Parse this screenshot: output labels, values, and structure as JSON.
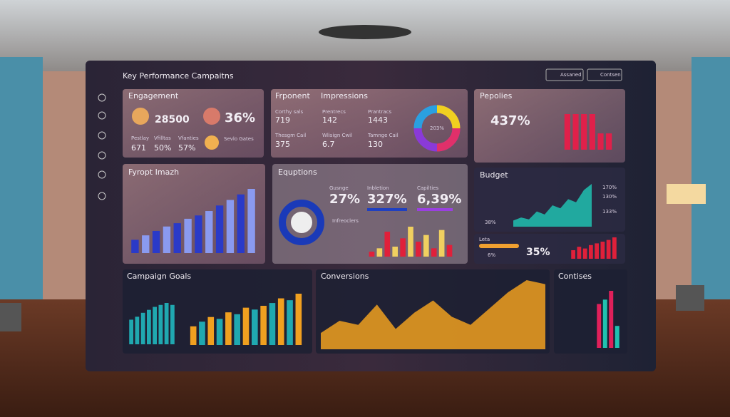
{
  "header": {
    "title": "Key Performance Campaitns",
    "actions": [
      "Assaned",
      "Contsen"
    ]
  },
  "engagement": {
    "title": "Engagement",
    "metrics": [
      "28500",
      "36%"
    ],
    "labels": [
      "Pestlay",
      "Vfilltas",
      "Vfanties"
    ],
    "values": [
      "671",
      "50%",
      "57%"
    ],
    "note": "Sevlo Gates"
  },
  "impressions": {
    "title": "Frponent",
    "subtitle": "Impressions",
    "labels": [
      "Corthy sals",
      "Prentrecs",
      "Prantracs",
      "Thesgm Cail",
      "Wlisign Cwil",
      "Tamnge Cail"
    ],
    "values": [
      "719",
      "142",
      "1443",
      "375",
      "6.7",
      "130"
    ],
    "donut_label": "203%"
  },
  "popular": {
    "title": "Pepolies",
    "value": "437%",
    "bars": [
      70,
      70,
      70,
      70,
      32,
      32
    ]
  },
  "funnel": {
    "title": "Fyropt Imazh",
    "bars": [
      12,
      16,
      20,
      24,
      27,
      31,
      34,
      38,
      43,
      48,
      53,
      58
    ]
  },
  "equations": {
    "title": "Equptions",
    "labels": [
      "Gusnge",
      "Inbletion",
      "Capilties"
    ],
    "values": [
      "27%",
      "327%",
      "6,39%"
    ],
    "legend_title": "Infreoclers",
    "bars": [
      6,
      10,
      30,
      12,
      22,
      36,
      18,
      26,
      10,
      32,
      14
    ]
  },
  "budget": {
    "title": "Budget",
    "values": [
      "170%",
      "130%",
      "133%",
      "38%"
    ],
    "area": [
      10,
      15,
      12,
      25,
      20,
      35,
      30,
      45,
      40,
      60,
      70
    ]
  },
  "leads": {
    "title": "Leta",
    "values": [
      "6%",
      "35%"
    ],
    "bars": [
      10,
      14,
      12,
      16,
      18,
      20,
      22,
      25
    ]
  },
  "campaign_goals": {
    "title": "Campaign Goals",
    "bars_a": [
      25,
      28,
      32,
      35,
      38,
      40,
      42,
      40
    ],
    "bars_b": [
      20,
      25,
      30,
      28,
      35,
      33,
      40,
      38,
      42,
      45,
      50,
      48,
      55
    ]
  },
  "conversions": {
    "title": "Conversions",
    "area": [
      20,
      35,
      30,
      55,
      25,
      45,
      60,
      40,
      30,
      50,
      70,
      85,
      80
    ]
  },
  "contises": {
    "title": "Contises",
    "bars": [
      50,
      55,
      65,
      25
    ]
  }
}
